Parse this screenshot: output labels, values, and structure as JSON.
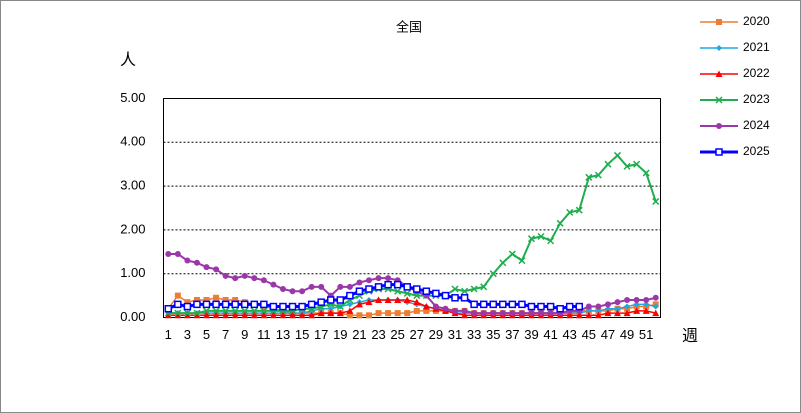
{
  "chart_data": {
    "type": "line",
    "title": "全国",
    "y_label": "人",
    "x_label": "週",
    "categories": [
      "1",
      null,
      "3",
      null,
      "5",
      null,
      "7",
      null,
      "9",
      null,
      "11",
      null,
      "13",
      null,
      "15",
      null,
      "17",
      null,
      "19",
      null,
      "21",
      null,
      "23",
      null,
      "25",
      null,
      "27",
      null,
      "29",
      null,
      "31",
      null,
      "33",
      null,
      "35",
      null,
      "37",
      null,
      "39",
      null,
      "41",
      null,
      "43",
      null,
      "45",
      null,
      "47",
      null,
      "49",
      null,
      "51",
      null
    ],
    "ylim": [
      0,
      5
    ],
    "yticks": [
      {
        "value": 0,
        "label": "0.00"
      },
      {
        "value": 1,
        "label": "1.00"
      },
      {
        "value": 2,
        "label": "2.00"
      },
      {
        "value": 3,
        "label": "3.00"
      },
      {
        "value": 4,
        "label": "4.00"
      },
      {
        "value": 5,
        "label": "5.00"
      }
    ],
    "grid": true,
    "legend": "right",
    "series": [
      {
        "name": "2020",
        "color": "#ed7d31",
        "marker": "square",
        "width": 1.5,
        "values": [
          0.2,
          0.5,
          0.35,
          0.4,
          0.4,
          0.45,
          0.4,
          0.4,
          0.35,
          0.3,
          0.25,
          0.2,
          0.15,
          0.1,
          0.1,
          0.1,
          0.1,
          0.1,
          0.1,
          0.05,
          0.05,
          0.05,
          0.1,
          0.1,
          0.1,
          0.1,
          0.15,
          0.15,
          0.15,
          0.15,
          0.15,
          0.15,
          0.1,
          0.1,
          0.1,
          0.1,
          0.1,
          0.1,
          0.1,
          0.1,
          0.1,
          0.1,
          0.1,
          0.15,
          0.15,
          0.15,
          0.15,
          0.2,
          0.2,
          0.25,
          0.25,
          0.3
        ]
      },
      {
        "name": "2021",
        "color": "#1ea8e0",
        "marker": "diamond",
        "width": 1.5,
        "values": [
          0.1,
          0.1,
          0.1,
          0.1,
          0.1,
          0.1,
          0.1,
          0.1,
          0.1,
          0.1,
          0.1,
          0.1,
          0.1,
          0.1,
          0.1,
          0.15,
          0.2,
          0.2,
          0.25,
          0.3,
          0.35,
          0.4,
          0.4,
          0.4,
          0.4,
          0.35,
          0.3,
          0.25,
          0.2,
          0.15,
          0.1,
          0.1,
          0.1,
          0.1,
          0.1,
          0.1,
          0.1,
          0.1,
          0.1,
          0.1,
          0.1,
          0.1,
          0.1,
          0.1,
          0.15,
          0.15,
          0.2,
          0.2,
          0.25,
          0.3,
          0.3,
          0.25
        ]
      },
      {
        "name": "2022",
        "color": "#ff0000",
        "marker": "triangle",
        "width": 1.5,
        "values": [
          0.05,
          0.05,
          0.05,
          0.05,
          0.05,
          0.05,
          0.05,
          0.05,
          0.05,
          0.05,
          0.05,
          0.05,
          0.05,
          0.05,
          0.05,
          0.05,
          0.1,
          0.1,
          0.1,
          0.15,
          0.3,
          0.35,
          0.4,
          0.4,
          0.4,
          0.4,
          0.35,
          0.25,
          0.2,
          0.15,
          0.1,
          0.05,
          0.05,
          0.05,
          0.05,
          0.05,
          0.05,
          0.05,
          0.05,
          0.05,
          0.05,
          0.05,
          0.05,
          0.05,
          0.05,
          0.05,
          0.1,
          0.1,
          0.1,
          0.15,
          0.15,
          0.1
        ]
      },
      {
        "name": "2023",
        "color": "#1fae4f",
        "marker": "cross",
        "width": 2,
        "values": [
          0.1,
          0.1,
          0.1,
          0.1,
          0.15,
          0.15,
          0.15,
          0.15,
          0.15,
          0.15,
          0.15,
          0.15,
          0.15,
          0.15,
          0.2,
          0.2,
          0.25,
          0.3,
          0.25,
          0.4,
          0.5,
          0.6,
          0.65,
          0.65,
          0.6,
          0.55,
          0.5,
          0.5,
          0.5,
          0.5,
          0.65,
          0.6,
          0.65,
          0.7,
          1.0,
          1.25,
          1.45,
          1.3,
          1.8,
          1.85,
          1.75,
          2.15,
          2.4,
          2.45,
          3.2,
          3.25,
          3.5,
          3.7,
          3.45,
          3.5,
          3.3,
          2.65
        ]
      },
      {
        "name": "2024",
        "color": "#9b37a8",
        "marker": "circle",
        "width": 2,
        "values": [
          1.45,
          1.45,
          1.3,
          1.25,
          1.15,
          1.1,
          0.95,
          0.9,
          0.95,
          0.9,
          0.85,
          0.75,
          0.65,
          0.6,
          0.6,
          0.7,
          0.7,
          0.5,
          0.7,
          0.7,
          0.8,
          0.85,
          0.9,
          0.9,
          0.85,
          0.7,
          0.6,
          0.5,
          0.25,
          0.2,
          0.15,
          0.15,
          0.1,
          0.1,
          0.1,
          0.1,
          0.1,
          0.1,
          0.1,
          0.1,
          0.1,
          0.1,
          0.15,
          0.15,
          0.25,
          0.25,
          0.3,
          0.35,
          0.4,
          0.4,
          0.4,
          0.45
        ]
      },
      {
        "name": "2025",
        "color": "#0000ff",
        "marker": "open-square",
        "width": 3,
        "values": [
          0.2,
          0.3,
          0.25,
          0.3,
          0.3,
          0.3,
          0.3,
          0.3,
          0.3,
          0.3,
          0.3,
          0.25,
          0.25,
          0.25,
          0.25,
          0.3,
          0.35,
          0.4,
          0.4,
          0.5,
          0.6,
          0.65,
          0.7,
          0.75,
          0.75,
          0.7,
          0.65,
          0.6,
          0.55,
          0.5,
          0.45,
          0.45,
          0.3,
          0.3,
          0.3,
          0.3,
          0.3,
          0.3,
          0.25,
          0.25,
          0.25,
          0.2,
          0.25,
          0.25,
          null,
          null,
          null,
          null,
          null,
          null,
          null,
          null
        ]
      }
    ]
  }
}
